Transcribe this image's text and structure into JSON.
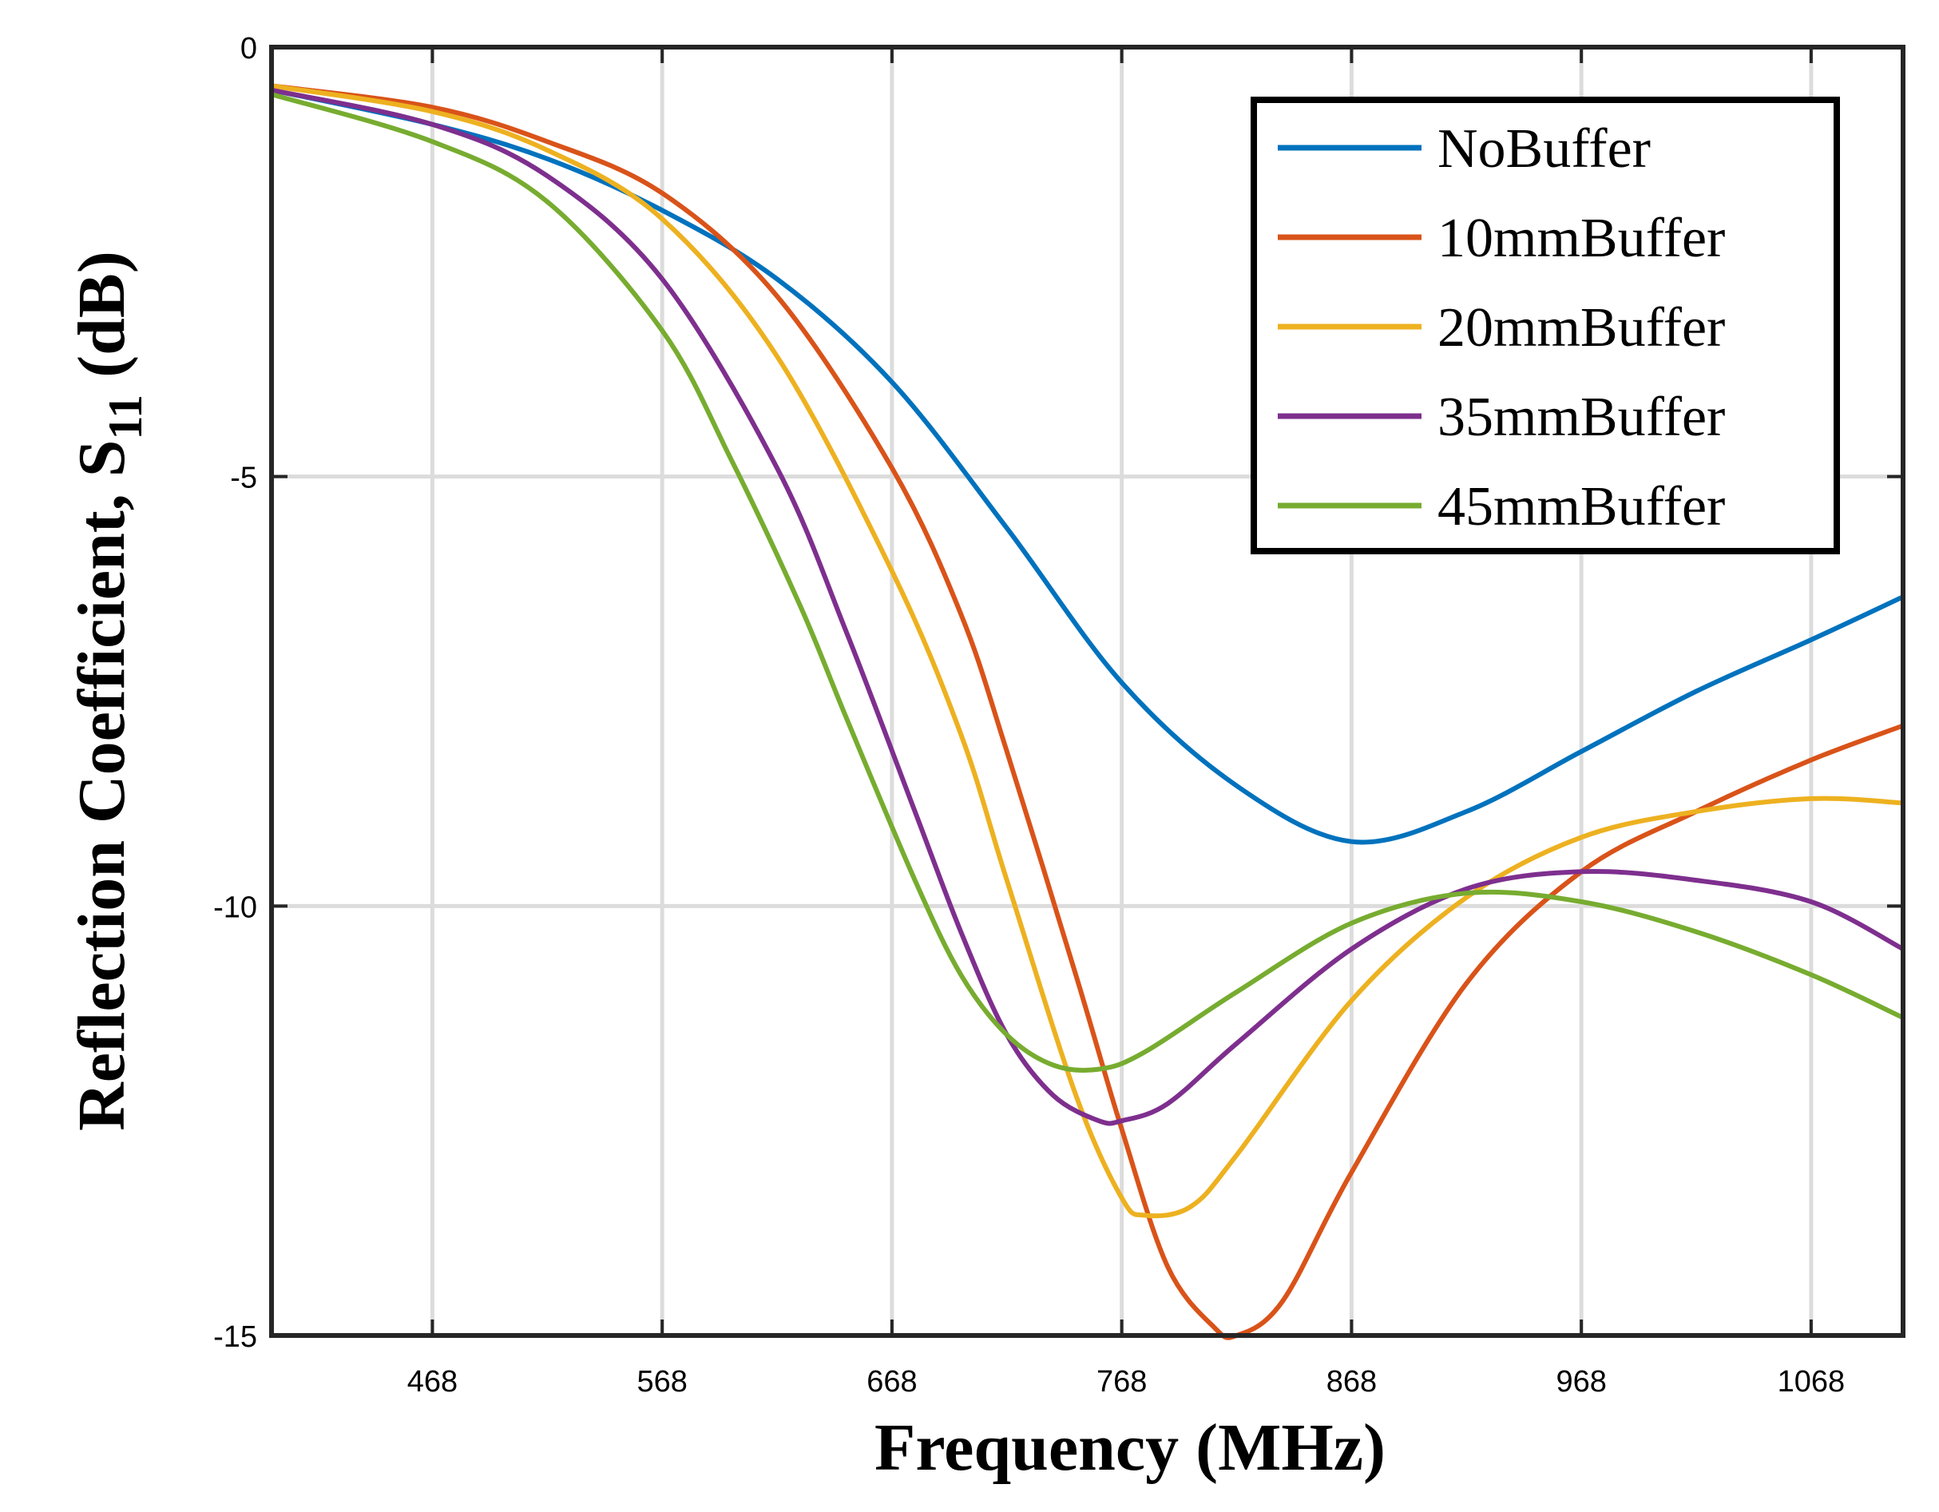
{
  "chart_data": {
    "type": "line",
    "xlabel": "Frequency (MHz)",
    "ylabel": {
      "main": "Reflection Coefficient, S",
      "subscript": "11",
      "unit": "(dB)"
    },
    "xlim": [
      398,
      1108
    ],
    "ylim": [
      -15,
      0
    ],
    "xticks": [
      468,
      568,
      668,
      768,
      868,
      968,
      1068
    ],
    "yticks": [
      0,
      -5,
      -10,
      -15
    ],
    "grid": true,
    "legend_position": "top-right",
    "series": [
      {
        "name": "NoBuffer",
        "color": "#0072BD",
        "x": [
          398,
          468,
          518,
          568,
          618,
          668,
          718,
          768,
          818,
          868,
          918,
          968,
          1018,
          1068,
          1108
        ],
        "y": [
          -0.5,
          -0.9,
          -1.3,
          -1.9,
          -2.7,
          -3.9,
          -5.6,
          -7.4,
          -8.6,
          -9.25,
          -8.9,
          -8.2,
          -7.5,
          -6.9,
          -6.4
        ]
      },
      {
        "name": "10mmBuffer",
        "color": "#D95319",
        "x": [
          398,
          468,
          518,
          568,
          618,
          668,
          698,
          718,
          748,
          768,
          788,
          808,
          818,
          838,
          868,
          918,
          968,
          1018,
          1068,
          1108
        ],
        "y": [
          -0.45,
          -0.7,
          -1.1,
          -1.7,
          -2.9,
          -4.9,
          -6.6,
          -8.2,
          -10.8,
          -12.6,
          -14.2,
          -14.9,
          -15.0,
          -14.6,
          -13.1,
          -10.9,
          -9.6,
          -8.9,
          -8.3,
          -7.9
        ]
      },
      {
        "name": "20mmBuffer",
        "color": "#EDB120",
        "x": [
          398,
          468,
          518,
          568,
          618,
          668,
          698,
          718,
          748,
          768,
          778,
          798,
          818,
          868,
          918,
          968,
          1018,
          1068,
          1108
        ],
        "y": [
          -0.45,
          -0.75,
          -1.2,
          -2.0,
          -3.6,
          -6.1,
          -8.0,
          -9.7,
          -12.2,
          -13.4,
          -13.6,
          -13.5,
          -12.9,
          -11.1,
          -9.9,
          -9.2,
          -8.9,
          -8.75,
          -8.8
        ]
      },
      {
        "name": "35mmBuffer",
        "color": "#7E2F8E",
        "x": [
          398,
          468,
          518,
          568,
          618,
          648,
          678,
          698,
          718,
          738,
          758,
          768,
          788,
          818,
          868,
          918,
          968,
          1018,
          1068,
          1108
        ],
        "y": [
          -0.5,
          -0.9,
          -1.5,
          -2.7,
          -4.9,
          -6.8,
          -8.9,
          -10.3,
          -11.5,
          -12.2,
          -12.5,
          -12.5,
          -12.3,
          -11.6,
          -10.5,
          -9.8,
          -9.6,
          -9.7,
          -9.95,
          -10.5
        ]
      },
      {
        "name": "45mmBuffer",
        "color": "#77AC30",
        "x": [
          398,
          468,
          518,
          568,
          598,
          628,
          648,
          678,
          698,
          718,
          738,
          758,
          778,
          818,
          868,
          918,
          968,
          1018,
          1068,
          1108
        ],
        "y": [
          -0.55,
          -1.1,
          -1.8,
          -3.3,
          -4.8,
          -6.5,
          -7.8,
          -9.7,
          -10.8,
          -11.5,
          -11.85,
          -11.9,
          -11.7,
          -11.0,
          -10.2,
          -9.85,
          -9.95,
          -10.3,
          -10.8,
          -11.3
        ]
      }
    ]
  }
}
